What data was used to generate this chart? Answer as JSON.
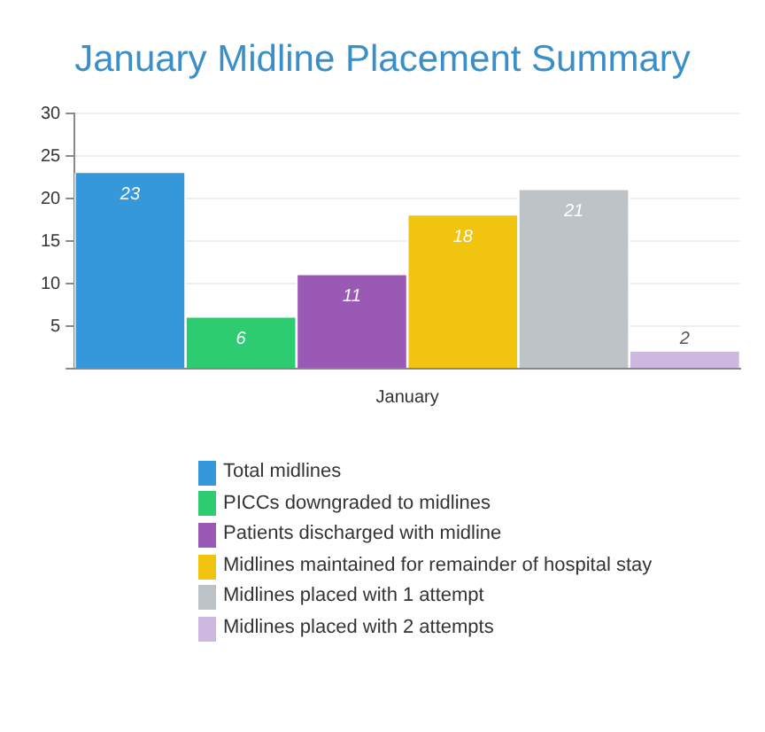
{
  "chart_data": {
    "type": "bar",
    "title": "January Midline Placement Summary",
    "categories": [
      "January"
    ],
    "series": [
      {
        "name": "Total midlines",
        "color": "#3498db",
        "values": [
          23
        ]
      },
      {
        "name": "PICCs downgraded to midlines",
        "color": "#2ecc71",
        "values": [
          6
        ]
      },
      {
        "name": "Patients discharged with midline",
        "color": "#9b59b6",
        "values": [
          11
        ]
      },
      {
        "name": "Midlines maintained for remainder of hospital stay",
        "color": "#f1c40f",
        "values": [
          18
        ]
      },
      {
        "name": "Midlines placed with 1 attempt",
        "color": "#bdc3c7",
        "values": [
          21
        ]
      },
      {
        "name": "Midlines placed with 2 attempts",
        "color": "#cdb8df",
        "values": [
          2
        ]
      }
    ],
    "ylim": [
      0,
      30
    ],
    "yticks": [
      {
        "value": 0,
        "label": null
      },
      5,
      10,
      15,
      20,
      25,
      30
    ],
    "grid": "y",
    "legend": "bottom",
    "data_labels": true
  }
}
